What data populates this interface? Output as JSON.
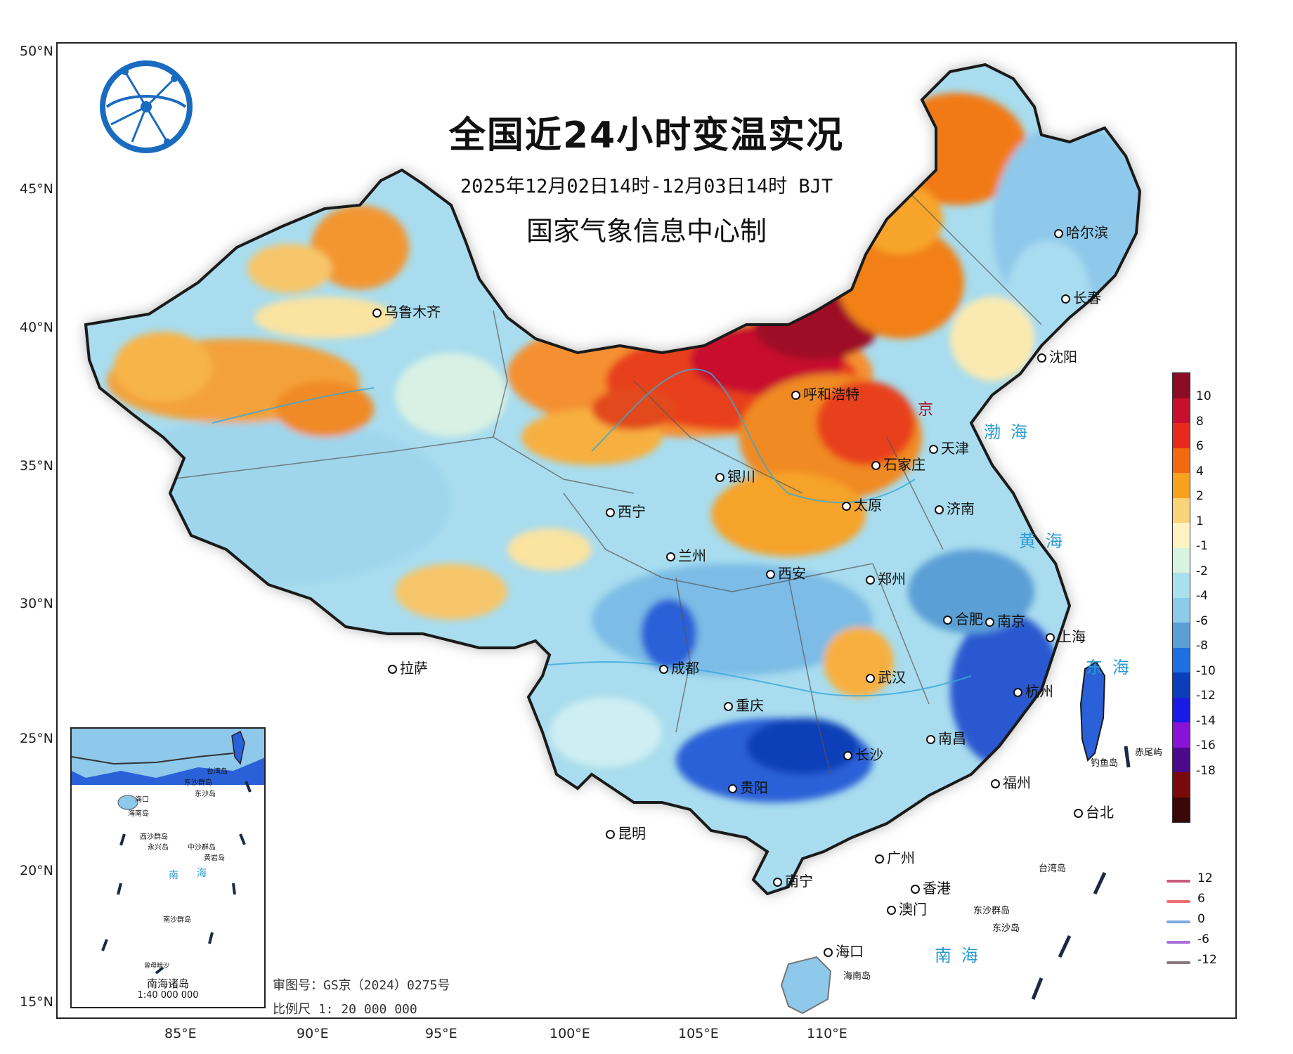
{
  "title": "全国近24小时变温实况",
  "subtitle": "2025年12月02日14时-12月03日14时 BJT",
  "agency": "国家气象信息中心制",
  "latitude_labels": [
    "50°N",
    "45°N",
    "40°N",
    "35°N",
    "30°N",
    "25°N",
    "20°N",
    "15°N"
  ],
  "longitude_labels": [
    "85°E",
    "90°E",
    "95°E",
    "100°E",
    "105°E",
    "110°E"
  ],
  "cities": [
    {
      "name": "哈尔滨"
    },
    {
      "name": "长春"
    },
    {
      "name": "沈阳"
    },
    {
      "name": "乌鲁木齐"
    },
    {
      "name": "呼和浩特"
    },
    {
      "name": "天津"
    },
    {
      "name": "银川"
    },
    {
      "name": "石家庄"
    },
    {
      "name": "太原"
    },
    {
      "name": "济南"
    },
    {
      "name": "西宁"
    },
    {
      "name": "兰州"
    },
    {
      "name": "西安"
    },
    {
      "name": "郑州"
    },
    {
      "name": "合肥"
    },
    {
      "name": "南京"
    },
    {
      "name": "上海"
    },
    {
      "name": "拉萨"
    },
    {
      "name": "成都"
    },
    {
      "name": "武汉"
    },
    {
      "name": "杭州"
    },
    {
      "name": "重庆"
    },
    {
      "name": "长沙"
    },
    {
      "name": "南昌"
    },
    {
      "name": "贵阳"
    },
    {
      "name": "福州"
    },
    {
      "name": "台北"
    },
    {
      "name": "昆明"
    },
    {
      "name": "广州"
    },
    {
      "name": "南宁"
    },
    {
      "name": "香港"
    },
    {
      "name": "澳门"
    },
    {
      "name": "海口"
    }
  ],
  "seas": [
    "渤海",
    "黄海",
    "东海",
    "南海"
  ],
  "map_small_labels": [
    "钓鱼岛",
    "赤尾屿",
    "台湾岛",
    "东沙群岛",
    "东沙岛",
    "海南岛",
    "京"
  ],
  "legend": {
    "ticks": [
      "10",
      "8",
      "6",
      "4",
      "2",
      "1",
      "-1",
      "-2",
      "-4",
      "-6",
      "-8",
      "-10",
      "-12",
      "-14",
      "-16",
      "-18"
    ],
    "colors": [
      "#8c0c24",
      "#c8102e",
      "#e82a1c",
      "#f26a10",
      "#f7a21e",
      "#fbd47a",
      "#fdf3c0",
      "#d8f3df",
      "#a8e0ee",
      "#8ccbea",
      "#5a9fd6",
      "#1e6fe0",
      "#0a3fb8",
      "#1a1ae6",
      "#8a12d6",
      "#4a0a8a",
      "#7a0a0a",
      "#3a0808"
    ]
  },
  "line_legend": [
    {
      "label": "12",
      "color": "#c65a7a"
    },
    {
      "label": "6",
      "color": "#ee7070"
    },
    {
      "label": "0",
      "color": "#7aa8e0"
    },
    {
      "label": "-6",
      "color": "#a870d8"
    },
    {
      "label": "-12",
      "color": "#8a7a80"
    }
  ],
  "inset": {
    "title": "南海诸岛",
    "scale": "1:40 000 000",
    "labels": [
      "台湾岛",
      "海口",
      "海南岛",
      "东沙群岛",
      "东沙岛",
      "西沙群岛",
      "永兴岛",
      "中沙群岛",
      "黄岩岛",
      "南",
      "海",
      "南沙群岛",
      "曾母暗沙"
    ]
  },
  "notes": {
    "approval": "审图号：GS京（2024）0275号",
    "scale": "比例尺 1: 20 000 000"
  }
}
